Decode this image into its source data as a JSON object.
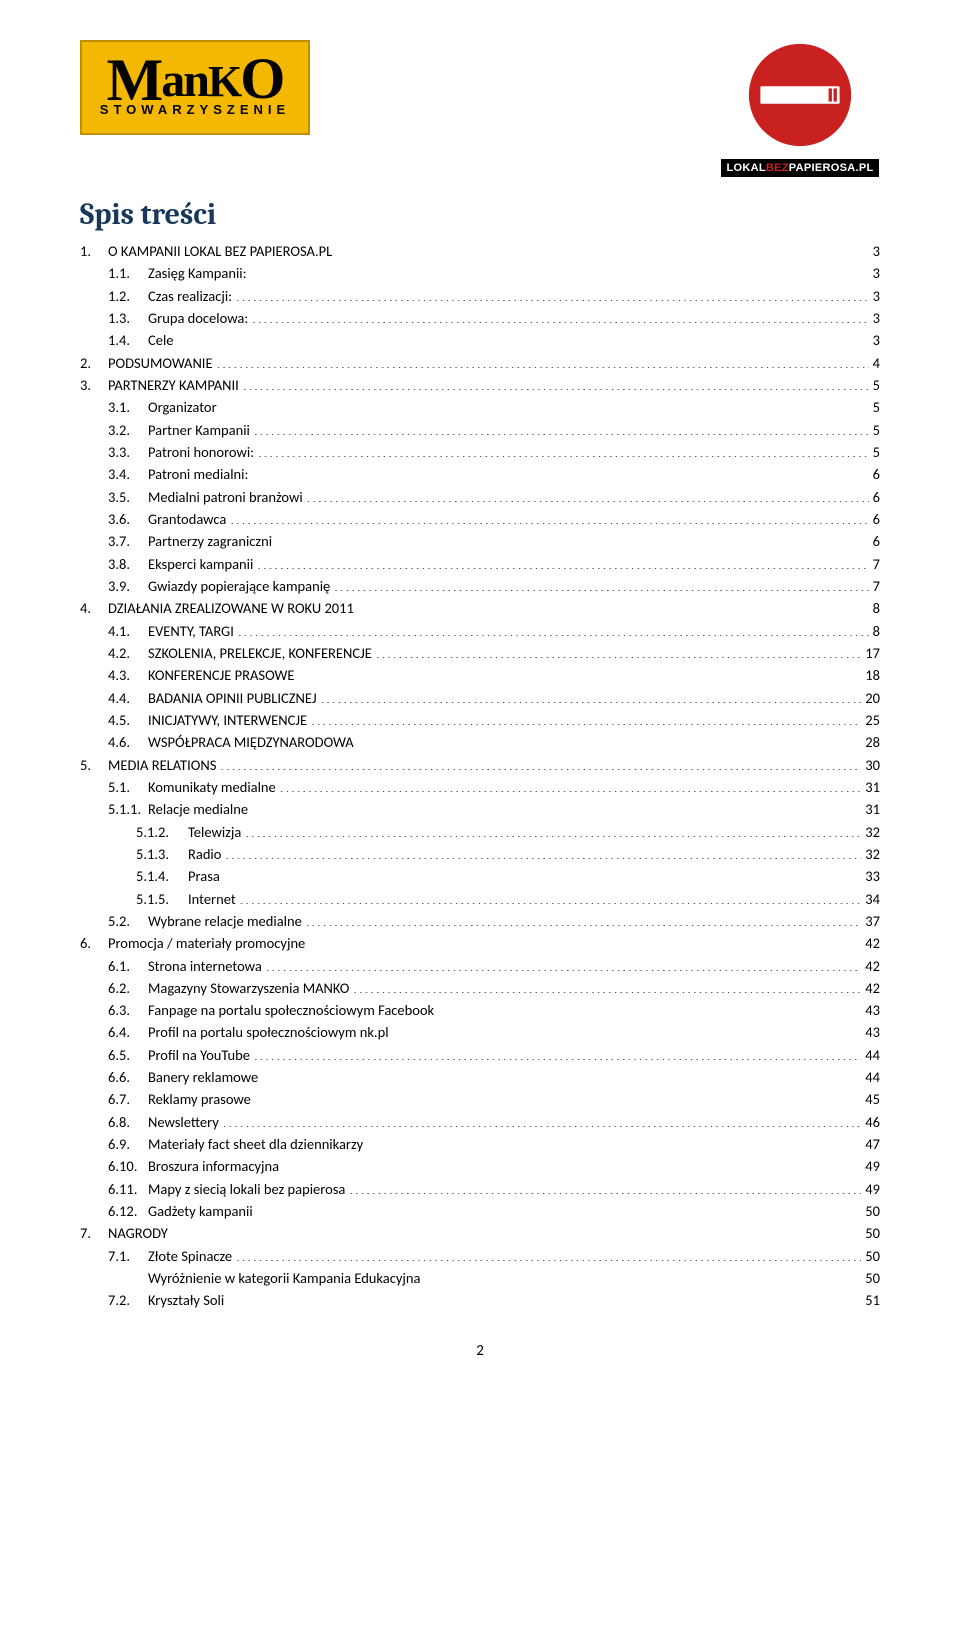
{
  "logos": {
    "left": {
      "brand_top": "ManKO",
      "brand_sub": "STOWARZYSZENIE"
    },
    "right": {
      "domain_prefix": "LOKAL",
      "domain_mid": "BEZ",
      "domain_suffix": "PAPIEROSA.PL"
    }
  },
  "title": "Spis treści",
  "page_footer": "2",
  "toc": [
    {
      "num": "1.",
      "label": "O KAMPANII LOKAL BEZ PAPIEROSA.PL",
      "page": "3",
      "level": 0
    },
    {
      "num": "1.1.",
      "label": "Zasięg Kampanii:",
      "page": "3",
      "level": 1
    },
    {
      "num": "1.2.",
      "label": "Czas realizacji:",
      "page": "3",
      "level": 1
    },
    {
      "num": "1.3.",
      "label": "Grupa docelowa:",
      "page": "3",
      "level": 1
    },
    {
      "num": "1.4.",
      "label": "Cele",
      "page": "3",
      "level": 1
    },
    {
      "num": "2.",
      "label": "PODSUMOWANIE",
      "page": "4",
      "level": 0
    },
    {
      "num": "3.",
      "label": "PARTNERZY KAMPANII",
      "page": "5",
      "level": 0
    },
    {
      "num": "3.1.",
      "label": "Organizator",
      "page": "5",
      "level": 1
    },
    {
      "num": "3.2.",
      "label": "Partner Kampanii",
      "page": "5",
      "level": 1
    },
    {
      "num": "3.3.",
      "label": "Patroni honorowi:",
      "page": "5",
      "level": 1
    },
    {
      "num": "3.4.",
      "label": "Patroni medialni:",
      "page": "6",
      "level": 1
    },
    {
      "num": "3.5.",
      "label": "Medialni patroni branżowi",
      "page": "6",
      "level": 1
    },
    {
      "num": "3.6.",
      "label": "Grantodawca",
      "page": "6",
      "level": 1
    },
    {
      "num": "3.7.",
      "label": "Partnerzy zagraniczni",
      "page": "6",
      "level": 1
    },
    {
      "num": "3.8.",
      "label": "Eksperci kampanii",
      "page": "7",
      "level": 1
    },
    {
      "num": "3.9.",
      "label": "Gwiazdy popierające kampanię",
      "page": "7",
      "level": 1
    },
    {
      "num": "4.",
      "label": "DZIAŁANIA ZREALIZOWANE W ROKU 2011",
      "page": "8",
      "level": 0
    },
    {
      "num": "4.1.",
      "label": "EVENTY, TARGI",
      "page": "8",
      "level": 1
    },
    {
      "num": "4.2.",
      "label": "SZKOLENIA, PRELEKCJE, KONFERENCJE",
      "page": "17",
      "level": 1
    },
    {
      "num": "4.3.",
      "label": "KONFERENCJE PRASOWE",
      "page": "18",
      "level": 1
    },
    {
      "num": "4.4.",
      "label": "BADANIA OPINII PUBLICZNEJ",
      "page": "20",
      "level": 1
    },
    {
      "num": "4.5.",
      "label": "INICJATYWY, INTERWENCJE",
      "page": "25",
      "level": 1
    },
    {
      "num": "4.6.",
      "label": "WSPÓŁPRACA MIĘDZYNARODOWA",
      "page": "28",
      "level": 1
    },
    {
      "num": "5.",
      "label": "MEDIA RELATIONS",
      "page": "30",
      "level": 0
    },
    {
      "num": "5.1.",
      "label": "Komunikaty medialne",
      "page": "31",
      "level": 1
    },
    {
      "num": "5.1.1.",
      "label": "Relacje medialne",
      "page": "31",
      "level": 1
    },
    {
      "num": "5.1.2.",
      "label": "Telewizja",
      "page": "32",
      "level": 2
    },
    {
      "num": "5.1.3.",
      "label": "Radio",
      "page": "32",
      "level": 2
    },
    {
      "num": "5.1.4.",
      "label": "Prasa",
      "page": "33",
      "level": 2
    },
    {
      "num": "5.1.5.",
      "label": "Internet",
      "page": "34",
      "level": 2
    },
    {
      "num": "5.2.",
      "label": "Wybrane relacje medialne",
      "page": "37",
      "level": 1
    },
    {
      "num": "6.",
      "label": "Promocja / materiały promocyjne",
      "page": "42",
      "level": 0
    },
    {
      "num": "6.1.",
      "label": "Strona internetowa",
      "page": "42",
      "level": 1
    },
    {
      "num": "6.2.",
      "label": "Magazyny Stowarzyszenia MANKO",
      "page": "42",
      "level": 1
    },
    {
      "num": "6.3.",
      "label": "Fanpage na portalu społecznościowym Facebook",
      "page": "43",
      "level": 1
    },
    {
      "num": "6.4.",
      "label": "Profil na portalu społecznościowym nk.pl",
      "page": "43",
      "level": 1
    },
    {
      "num": "6.5.",
      "label": "Profil na YouTube",
      "page": "44",
      "level": 1
    },
    {
      "num": "6.6.",
      "label": "Banery reklamowe",
      "page": "44",
      "level": 1
    },
    {
      "num": "6.7.",
      "label": "Reklamy prasowe",
      "page": "45",
      "level": 1
    },
    {
      "num": "6.8.",
      "label": "Newslettery",
      "page": "46",
      "level": 1
    },
    {
      "num": "6.9.",
      "label": "Materiały fact sheet dla dziennikarzy",
      "page": "47",
      "level": 1
    },
    {
      "num": "6.10.",
      "label": "Broszura informacyjna",
      "page": "49",
      "level": 1
    },
    {
      "num": "6.11.",
      "label": "Mapy z siecią lokali bez papierosa",
      "page": "49",
      "level": 1
    },
    {
      "num": "6.12.",
      "label": "Gadżety kampanii",
      "page": "50",
      "level": 1
    },
    {
      "num": "7.",
      "label": "NAGRODY",
      "page": "50",
      "level": 0
    },
    {
      "num": "7.1.",
      "label": "Złote Spinacze",
      "page": "50",
      "level": 1
    },
    {
      "num": "",
      "label": "Wyróżnienie w kategorii Kampania Edukacyjna",
      "page": "50",
      "level": 1
    },
    {
      "num": "7.2.",
      "label": "Kryształy Soli",
      "page": "51",
      "level": 1
    }
  ],
  "colors": {
    "heading": "#17375b",
    "logo_bg": "#f5b800",
    "no_entry_red": "#c92020",
    "no_entry_white": "#ffffff"
  }
}
